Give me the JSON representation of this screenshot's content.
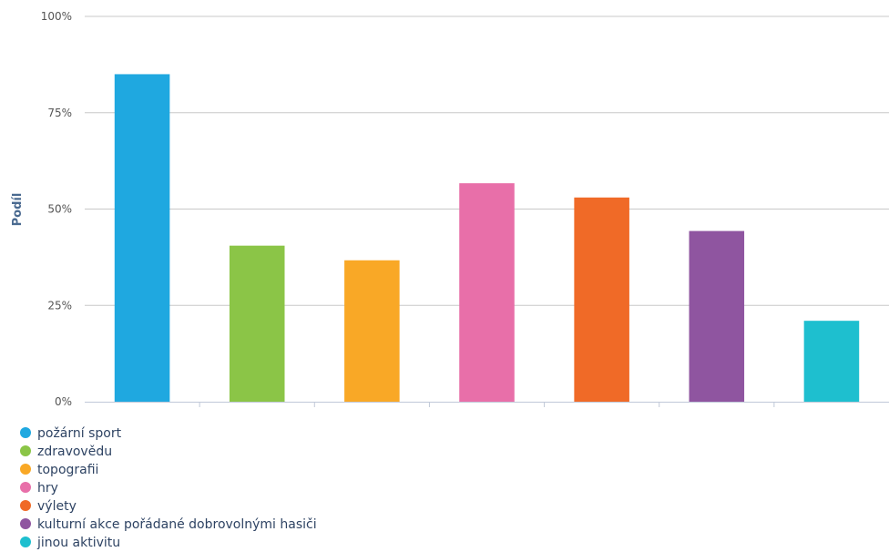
{
  "chart_data": {
    "type": "bar",
    "title": "",
    "xlabel": "",
    "ylabel": "Podíl",
    "ylim": [
      0,
      100
    ],
    "yticks": [
      "0%",
      "25%",
      "50%",
      "75%",
      "100%"
    ],
    "grid": true,
    "legend_position": "bottom-left",
    "series": [
      {
        "name": "požární sport",
        "value": 85,
        "color": "#1fa8e0"
      },
      {
        "name": "zdravovědu",
        "value": 40.5,
        "color": "#8bc547"
      },
      {
        "name": "topografii",
        "value": 36.7,
        "color": "#f9a826"
      },
      {
        "name": "hry",
        "value": 56.7,
        "color": "#e86fa9"
      },
      {
        "name": "výlety",
        "value": 53,
        "color": "#f06a27"
      },
      {
        "name": "kulturní akce pořádané dobrovolnými hasiči",
        "value": 44.3,
        "color": "#8f55a0"
      },
      {
        "name": "jinou aktivitu",
        "value": 21,
        "color": "#1ebfcf"
      }
    ]
  }
}
